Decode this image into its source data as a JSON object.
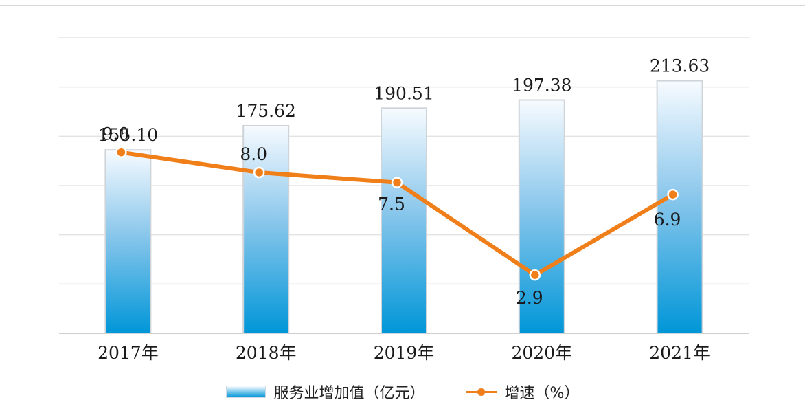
{
  "chart_data": {
    "type": "bar",
    "categories": [
      "2017年",
      "2018年",
      "2019年",
      "2020年",
      "2021年"
    ],
    "series": [
      {
        "name": "服务业增加值（亿元）",
        "type": "bar",
        "axis": "left",
        "values": [
          155.1,
          175.62,
          190.51,
          197.38,
          213.63
        ],
        "labels": [
          "155.10",
          "175.62",
          "190.51",
          "197.38",
          "213.63"
        ],
        "color": "#0097d9"
      },
      {
        "name": "增速（%）",
        "type": "line",
        "axis": "right",
        "values": [
          9.0,
          8.0,
          7.5,
          2.9,
          6.9
        ],
        "labels": [
          "9.0",
          "8.0",
          "7.5",
          "2.9",
          "6.9"
        ],
        "color": "#f07f1a"
      }
    ],
    "ylim": [
      0,
      250
    ],
    "y2lim": [
      0,
      14.7
    ],
    "grid": true,
    "legend": "bottom"
  }
}
